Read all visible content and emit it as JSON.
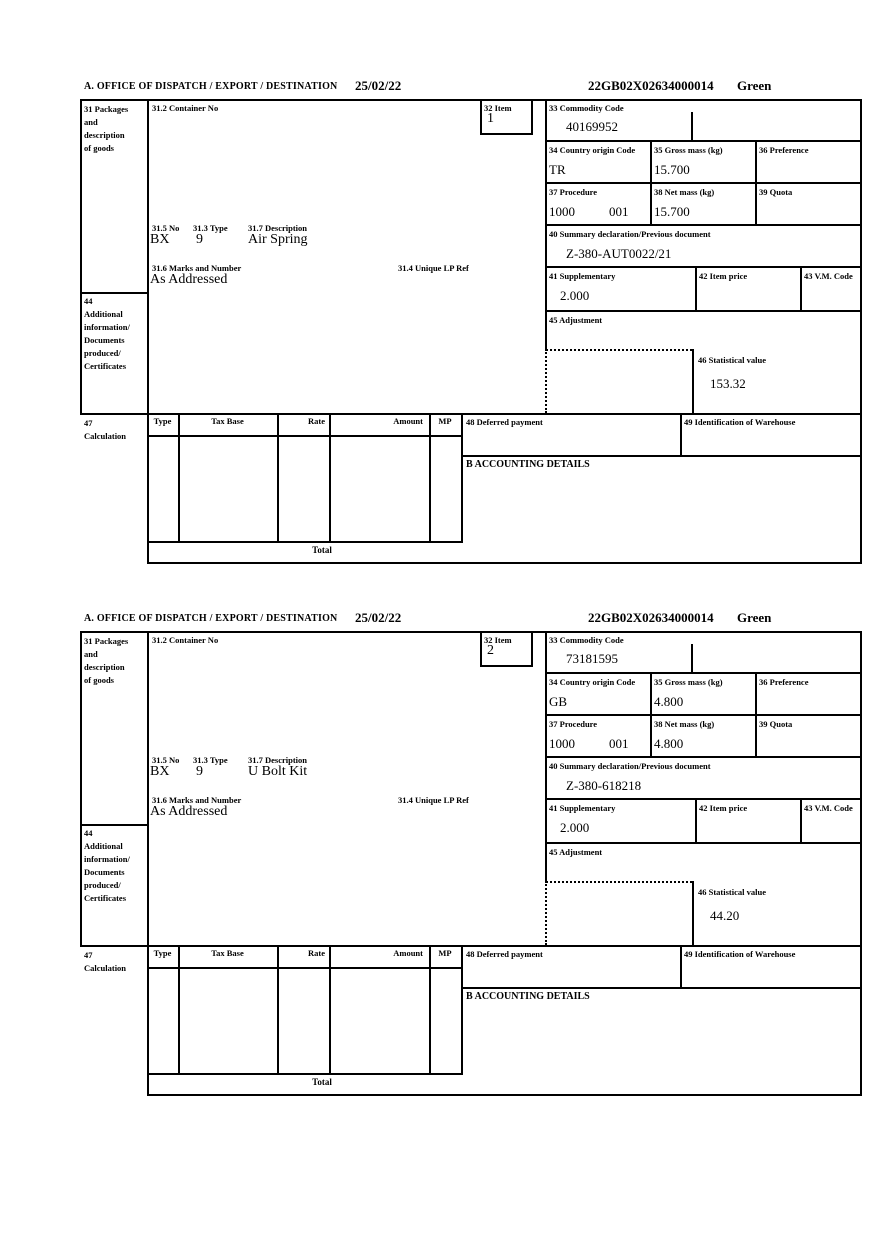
{
  "header": {
    "office_label": "A.  OFFICE OF DISPATCH / EXPORT / DESTINATION",
    "date": "25/02/22",
    "mrn": "22GB02X02634000014",
    "routing": "Green"
  },
  "labels": {
    "packages": "31 Packages\nand\ndescription\nof goods",
    "container_no": "31.2 Container No",
    "item": "32 Item",
    "commodity_code": "33 Commodity Code",
    "country_origin": "34 Country origin Code",
    "gross_mass": "35 Gross mass (kg)",
    "preference": "36 Preference",
    "procedure": "37 Procedure",
    "net_mass": "38 Net mass (kg)",
    "quota": "39 Quota",
    "summary_declaration": "40 Summary declaration/Previous document",
    "supplementary": "41 Supplementary",
    "item_price": "42 Item price",
    "vm_code": "43 V.M. Code",
    "additional_info": "44\nAdditional\ninformation/\nDocuments\nproduced/\nCertificates",
    "adjustment": "45 Adjustment",
    "statistical_value": "46 Statistical value",
    "calculation": "47\nCalculation",
    "deferred_payment": "48 Deferred payment",
    "warehouse_id": "49 Identification of Warehouse",
    "no_315": "31.5 No",
    "type_313": "31.3 Type",
    "description_317": "31.7 Description",
    "marks_316": "31.6 Marks and Number",
    "lp_ref_314": "31.4 Unique LP Ref",
    "accounting": "B ACCOUNTING DETAILS",
    "col_type": "Type",
    "col_tax_base": "Tax Base",
    "col_rate": "Rate",
    "col_amount": "Amount",
    "col_mp": "MP",
    "total": "Total"
  },
  "items": [
    {
      "item_no": "1",
      "commodity_code": "40169952",
      "country_origin": "TR",
      "gross_mass": "15.700",
      "net_mass": "15.700",
      "procedure": "1000",
      "procedure_ext": "001",
      "previous_document": "Z-380-AUT0022/21",
      "supplementary": "2.000",
      "statistical_value": "153.32",
      "package_no": "BX",
      "package_type": "9",
      "description": "Air Spring",
      "marks": "As Addressed"
    },
    {
      "item_no": "2",
      "commodity_code": "73181595",
      "country_origin": "GB",
      "gross_mass": "4.800",
      "net_mass": "4.800",
      "procedure": "1000",
      "procedure_ext": "001",
      "previous_document": "Z-380-618218",
      "supplementary": "2.000",
      "statistical_value": "44.20",
      "package_no": "BX",
      "package_type": "9",
      "description": "U Bolt Kit",
      "marks": "As Addressed"
    }
  ]
}
